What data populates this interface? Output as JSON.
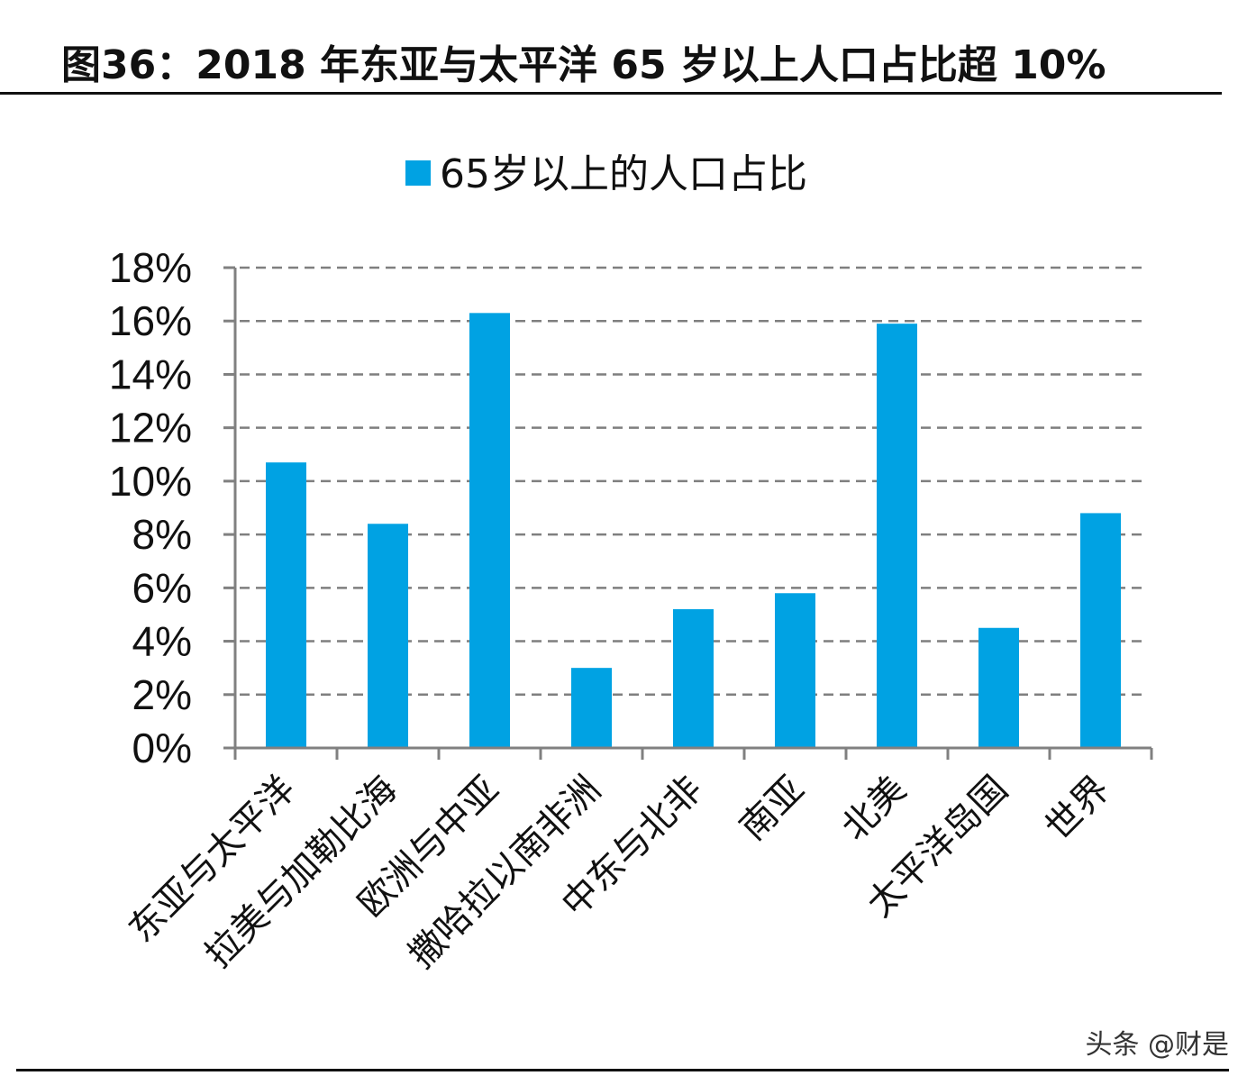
{
  "header": {
    "figure_title": "图36：2018 年东亚与太平洋 65 岁以上人口占比超 10%"
  },
  "footer": {
    "watermark": "头条 @财是"
  },
  "colors": {
    "bar": "#00a2e3",
    "grid": "#7f7f7f",
    "axis": "#808080",
    "text": "#111111"
  },
  "chart_data": {
    "type": "bar",
    "title": "",
    "legend": {
      "placement": "top-center",
      "entries": [
        "65岁以上的人口占比"
      ]
    },
    "categories": [
      "东亚与太平洋",
      "拉美与加勒比海",
      "欧洲与中亚",
      "撒哈拉以南非洲",
      "中东与北非",
      "南亚",
      "北美",
      "太平洋岛国",
      "世界"
    ],
    "series": [
      {
        "name": "65岁以上的人口占比",
        "values": [
          10.7,
          8.4,
          16.3,
          3.0,
          5.2,
          5.8,
          15.9,
          4.5,
          8.8
        ]
      }
    ],
    "ylim": [
      0,
      18
    ],
    "yticks": [
      0,
      2,
      4,
      6,
      8,
      10,
      12,
      14,
      16,
      18
    ],
    "ytick_labels": [
      "0%",
      "2%",
      "4%",
      "6%",
      "8%",
      "10%",
      "12%",
      "14%",
      "16%",
      "18%"
    ],
    "xlabel": "",
    "ylabel": "",
    "grid": true,
    "grid_style": "dashed"
  }
}
